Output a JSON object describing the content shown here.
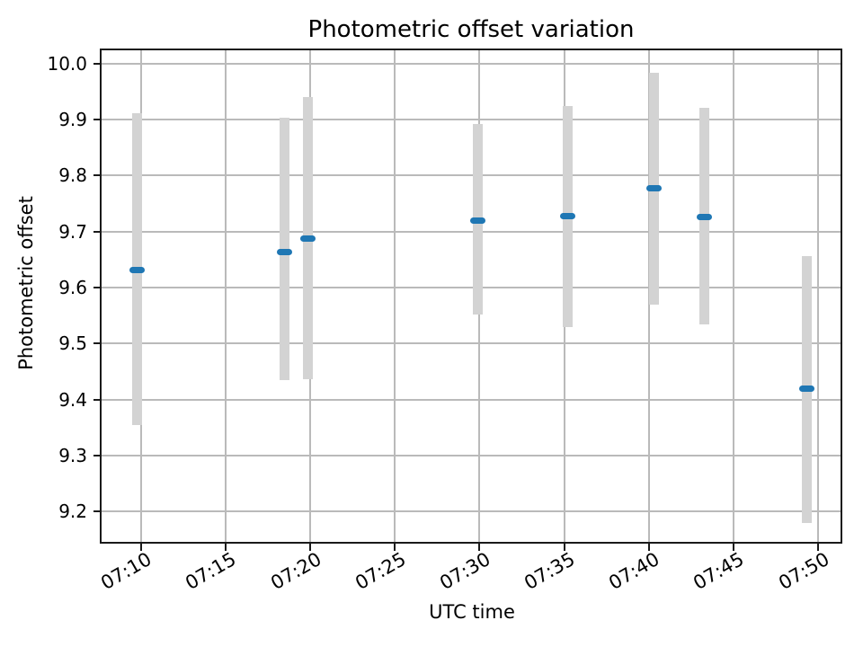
{
  "figure": {
    "title": "Photometric offset variation",
    "xlabel": "UTC time",
    "ylabel": "Photometric offset"
  },
  "chart_data": {
    "type": "scatter",
    "title": "Photometric offset variation",
    "xlabel": "UTC time",
    "ylabel": "Photometric offset",
    "grid": true,
    "legend": false,
    "x_ticks": [
      {
        "t_min": 10,
        "label": "07:10"
      },
      {
        "t_min": 15,
        "label": "07:15"
      },
      {
        "t_min": 20,
        "label": "07:20"
      },
      {
        "t_min": 25,
        "label": "07:25"
      },
      {
        "t_min": 30,
        "label": "07:30"
      },
      {
        "t_min": 35,
        "label": "07:35"
      },
      {
        "t_min": 40,
        "label": "07:40"
      },
      {
        "t_min": 45,
        "label": "07:45"
      },
      {
        "t_min": 50,
        "label": "07:50"
      }
    ],
    "y_ticks": [
      {
        "value": 10.0,
        "label": "10.0"
      },
      {
        "value": 9.9,
        "label": "9.9"
      },
      {
        "value": 9.8,
        "label": "9.8"
      },
      {
        "value": 9.7,
        "label": "9.7"
      },
      {
        "value": 9.6,
        "label": "9.6"
      },
      {
        "value": 9.5,
        "label": "9.5"
      },
      {
        "value": 9.4,
        "label": "9.4"
      },
      {
        "value": 9.3,
        "label": "9.3"
      },
      {
        "value": 9.2,
        "label": "9.2"
      }
    ],
    "xlim_minutes_after_0700": [
      7.66,
      51.44
    ],
    "ylim": [
      9.143,
      10.025
    ],
    "points": [
      {
        "utc": "07:09:48",
        "t_min": 9.8,
        "offset": 9.632,
        "err_low": 9.355,
        "err_high": 9.912
      },
      {
        "utc": "07:18:29",
        "t_min": 18.48,
        "offset": 9.664,
        "err_low": 9.434,
        "err_high": 9.904
      },
      {
        "utc": "07:19:52",
        "t_min": 19.86,
        "offset": 9.688,
        "err_low": 9.437,
        "err_high": 9.94
      },
      {
        "utc": "07:29:55",
        "t_min": 29.91,
        "offset": 9.719,
        "err_low": 9.552,
        "err_high": 9.892
      },
      {
        "utc": "07:35:13",
        "t_min": 35.22,
        "offset": 9.727,
        "err_low": 9.53,
        "err_high": 9.924
      },
      {
        "utc": "07:40:18",
        "t_min": 40.3,
        "offset": 9.777,
        "err_low": 9.57,
        "err_high": 9.984
      },
      {
        "utc": "07:43:18",
        "t_min": 43.3,
        "offset": 9.726,
        "err_low": 9.535,
        "err_high": 9.921
      },
      {
        "utc": "07:49:20",
        "t_min": 49.34,
        "offset": 9.42,
        "err_low": 9.18,
        "err_high": 9.656
      }
    ],
    "colors": {
      "marker": "#1f77b4",
      "error_bar": "#d3d3d3",
      "grid": "#bababa",
      "spine": "#1a1a1a",
      "text": "#000000",
      "background": "#ffffff"
    }
  }
}
